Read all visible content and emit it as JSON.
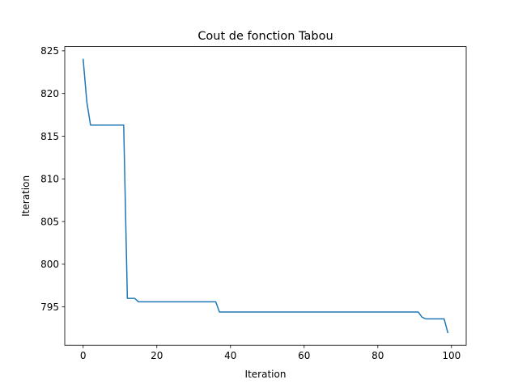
{
  "chart_data": {
    "type": "line",
    "title": "Cout de fonction Tabou",
    "xlabel": "Iteration",
    "ylabel": "Iteration",
    "xlim": [
      -5,
      104
    ],
    "ylim": [
      790.5,
      825.5
    ],
    "xticks": [
      0,
      20,
      40,
      60,
      80,
      100
    ],
    "yticks": [
      795,
      800,
      805,
      810,
      815,
      820,
      825
    ],
    "grid": false,
    "series": [
      {
        "color": "#1f77b4",
        "points": [
          [
            0,
            824.0
          ],
          [
            1,
            819.0
          ],
          [
            2,
            816.3
          ],
          [
            11,
            816.3
          ],
          [
            12,
            796.0
          ],
          [
            14,
            796.0
          ],
          [
            15,
            795.6
          ],
          [
            36,
            795.6
          ],
          [
            37,
            794.4
          ],
          [
            91,
            794.4
          ],
          [
            92,
            793.8
          ],
          [
            93,
            793.6
          ],
          [
            98,
            793.6
          ],
          [
            99,
            792.0
          ]
        ]
      }
    ]
  }
}
